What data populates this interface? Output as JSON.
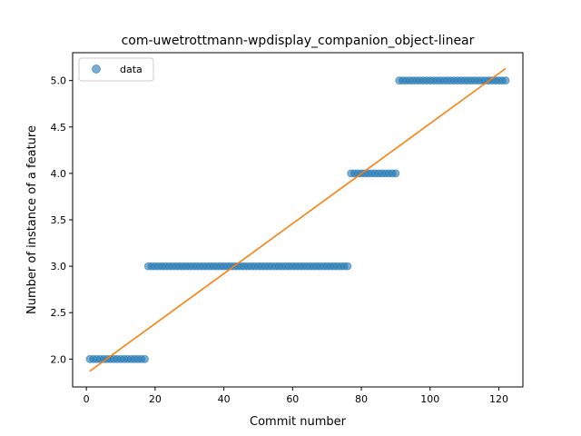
{
  "chart_data": {
    "type": "scatter",
    "title": "com-uwetrottmann-wpdisplay_companion_object-linear",
    "xlabel": "Commit number",
    "ylabel": "Number of instance of a feature",
    "xlim": [
      -4,
      127
    ],
    "ylim": [
      1.7,
      5.3
    ],
    "xticks": [
      0,
      20,
      40,
      60,
      80,
      100,
      120
    ],
    "yticks": [
      "2.0",
      "2.5",
      "3.0",
      "3.5",
      "4.0",
      "4.5",
      "5.0"
    ],
    "legend": {
      "position": "top-left",
      "entries": [
        "data"
      ]
    },
    "grid": false,
    "colors": {
      "points": "#1f77b4",
      "fit": "#ff7f0e"
    },
    "series": [
      {
        "name": "data",
        "kind": "scatter",
        "points": [
          [
            1,
            2
          ],
          [
            2,
            2
          ],
          [
            3,
            2
          ],
          [
            4,
            2
          ],
          [
            5,
            2
          ],
          [
            6,
            2
          ],
          [
            7,
            2
          ],
          [
            8,
            2
          ],
          [
            9,
            2
          ],
          [
            10,
            2
          ],
          [
            11,
            2
          ],
          [
            12,
            2
          ],
          [
            13,
            2
          ],
          [
            14,
            2
          ],
          [
            15,
            2
          ],
          [
            16,
            2
          ],
          [
            17,
            2
          ],
          [
            18,
            3
          ],
          [
            19,
            3
          ],
          [
            20,
            3
          ],
          [
            21,
            3
          ],
          [
            22,
            3
          ],
          [
            23,
            3
          ],
          [
            24,
            3
          ],
          [
            25,
            3
          ],
          [
            26,
            3
          ],
          [
            27,
            3
          ],
          [
            28,
            3
          ],
          [
            29,
            3
          ],
          [
            30,
            3
          ],
          [
            31,
            3
          ],
          [
            32,
            3
          ],
          [
            33,
            3
          ],
          [
            34,
            3
          ],
          [
            35,
            3
          ],
          [
            36,
            3
          ],
          [
            37,
            3
          ],
          [
            38,
            3
          ],
          [
            39,
            3
          ],
          [
            40,
            3
          ],
          [
            41,
            3
          ],
          [
            42,
            3
          ],
          [
            43,
            3
          ],
          [
            44,
            3
          ],
          [
            45,
            3
          ],
          [
            46,
            3
          ],
          [
            47,
            3
          ],
          [
            48,
            3
          ],
          [
            49,
            3
          ],
          [
            50,
            3
          ],
          [
            51,
            3
          ],
          [
            52,
            3
          ],
          [
            53,
            3
          ],
          [
            54,
            3
          ],
          [
            55,
            3
          ],
          [
            56,
            3
          ],
          [
            57,
            3
          ],
          [
            58,
            3
          ],
          [
            59,
            3
          ],
          [
            60,
            3
          ],
          [
            61,
            3
          ],
          [
            62,
            3
          ],
          [
            63,
            3
          ],
          [
            64,
            3
          ],
          [
            65,
            3
          ],
          [
            66,
            3
          ],
          [
            67,
            3
          ],
          [
            68,
            3
          ],
          [
            69,
            3
          ],
          [
            70,
            3
          ],
          [
            71,
            3
          ],
          [
            72,
            3
          ],
          [
            73,
            3
          ],
          [
            74,
            3
          ],
          [
            75,
            3
          ],
          [
            76,
            3
          ],
          [
            77,
            4
          ],
          [
            78,
            4
          ],
          [
            79,
            4
          ],
          [
            80,
            4
          ],
          [
            81,
            4
          ],
          [
            82,
            4
          ],
          [
            83,
            4
          ],
          [
            84,
            4
          ],
          [
            85,
            4
          ],
          [
            86,
            4
          ],
          [
            87,
            4
          ],
          [
            88,
            4
          ],
          [
            89,
            4
          ],
          [
            90,
            4
          ],
          [
            91,
            5
          ],
          [
            92,
            5
          ],
          [
            93,
            5
          ],
          [
            94,
            5
          ],
          [
            95,
            5
          ],
          [
            96,
            5
          ],
          [
            97,
            5
          ],
          [
            98,
            5
          ],
          [
            99,
            5
          ],
          [
            100,
            5
          ],
          [
            101,
            5
          ],
          [
            102,
            5
          ],
          [
            103,
            5
          ],
          [
            104,
            5
          ],
          [
            105,
            5
          ],
          [
            106,
            5
          ],
          [
            107,
            5
          ],
          [
            108,
            5
          ],
          [
            109,
            5
          ],
          [
            110,
            5
          ],
          [
            111,
            5
          ],
          [
            112,
            5
          ],
          [
            113,
            5
          ],
          [
            114,
            5
          ],
          [
            115,
            5
          ],
          [
            116,
            5
          ],
          [
            117,
            5
          ],
          [
            118,
            5
          ],
          [
            119,
            5
          ],
          [
            120,
            5
          ],
          [
            121,
            5
          ],
          [
            122,
            5
          ]
        ]
      },
      {
        "kind": "line",
        "points": [
          [
            1,
            1.87
          ],
          [
            122,
            5.13
          ]
        ]
      }
    ]
  }
}
